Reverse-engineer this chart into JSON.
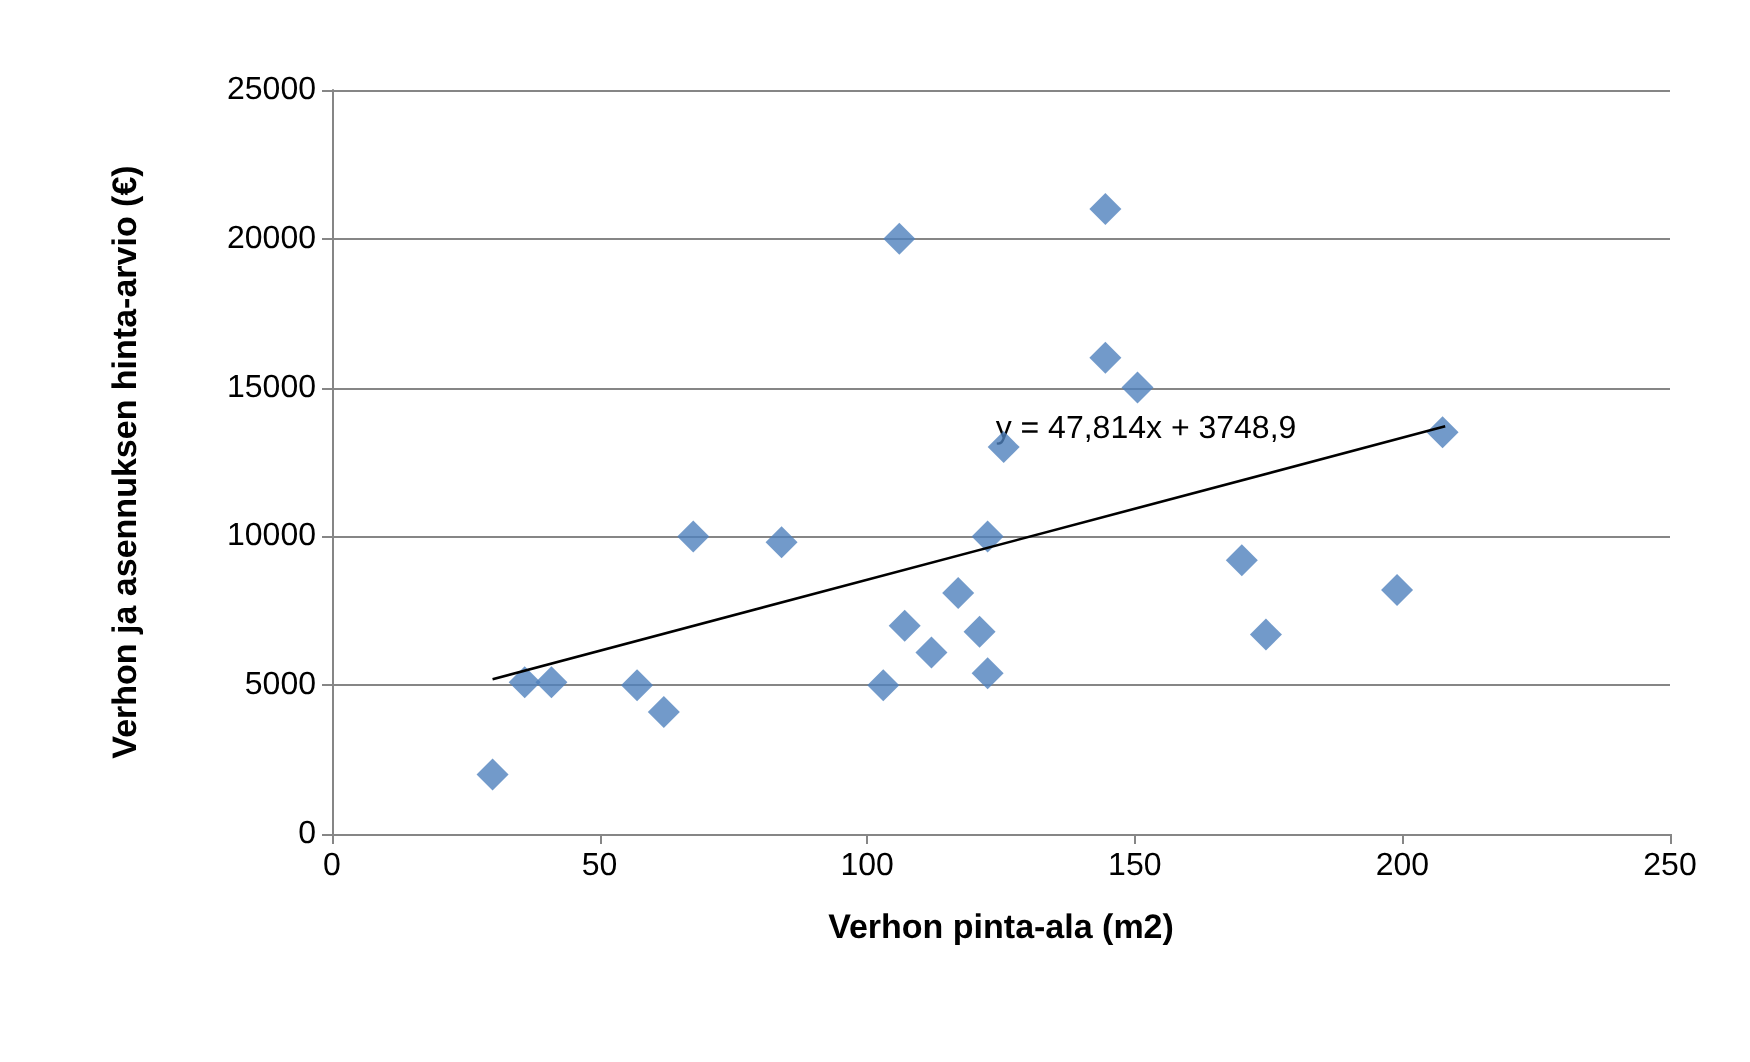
{
  "chart_data": {
    "type": "scatter",
    "xlabel": "Verhon pinta-ala (m2)",
    "ylabel": "Verhon ja asennuksen hinta-arvio (€)",
    "xlim": [
      0,
      250
    ],
    "xticks": [
      0,
      50,
      100,
      150,
      200,
      250
    ],
    "ylim": [
      0,
      25000
    ],
    "yticks": [
      0,
      5000,
      10000,
      15000,
      20000,
      25000
    ],
    "grid": "y",
    "series": [
      {
        "marker": "diamond",
        "color": "#4f81bd",
        "x": [
          30,
          36,
          41,
          57,
          62,
          67.5,
          84,
          103,
          106,
          107,
          112,
          117,
          121,
          122.5,
          122.5,
          125.5,
          144.5,
          144.5,
          150.5,
          170,
          174.5,
          199,
          207.5
        ],
        "values": [
          2000,
          5100,
          5100,
          5000,
          4100,
          10000,
          9800,
          5000,
          20000,
          7000,
          6100,
          8100,
          6800,
          10000,
          5400,
          13000,
          21000,
          16000,
          15000,
          9200,
          6700,
          8200,
          13500
        ]
      },
      {
        "type": "line",
        "marker": "none",
        "color": "#000000",
        "x": [
          30,
          208
        ],
        "values": [
          5200,
          13700
        ]
      }
    ],
    "annotations": [
      {
        "text": "y = 47,814x + 3748,9",
        "x": 124,
        "y": 13600
      }
    ]
  }
}
